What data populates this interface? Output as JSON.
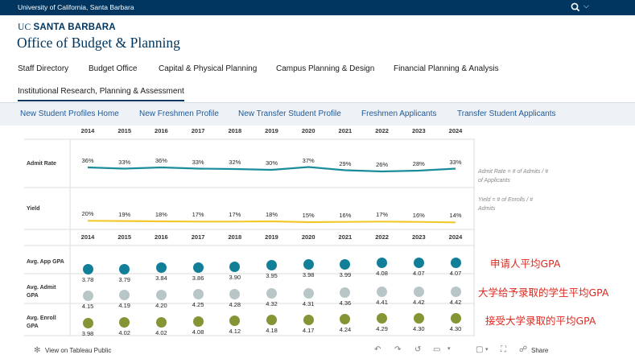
{
  "topbar": {
    "university": "University of California, Santa Barbara"
  },
  "brand": {
    "uc": "UC",
    "campus": "SANTA BARBARA",
    "office": "Office of Budget & Planning"
  },
  "nav": {
    "items": [
      "Staff Directory",
      "Budget Office",
      "Capital & Physical Planning",
      "Campus Planning & Design",
      "Financial Planning & Analysis",
      "Institutional Research, Planning & Assessment"
    ]
  },
  "subnav": {
    "items": [
      "New Student Profiles Home",
      "New Freshmen Profile",
      "New Transfer Student Profile",
      "Freshmen Applicants",
      "Transfer Student Applicants"
    ]
  },
  "viz": {
    "years": [
      "2014",
      "2015",
      "2016",
      "2017",
      "2018",
      "2019",
      "2020",
      "2021",
      "2022",
      "2023",
      "2024"
    ],
    "rows": {
      "admit_rate_label": "Admit Rate",
      "yield_label": "Yield",
      "app_gpa_label": "Avg. App GPA",
      "admit_gpa_label": [
        "Avg. Admit",
        "GPA"
      ],
      "enroll_gpa_label": [
        "Avg. Enroll",
        "GPA"
      ]
    },
    "notes": {
      "admit_rate": [
        "Admit Rate = # of Admits / #",
        "of Applicants"
      ],
      "yield": [
        "Yield = # of Enrolls / #",
        "Admits"
      ]
    },
    "annotations": {
      "app": "申请人平均GPA",
      "admit": "大学给予录取的学生平均GPA",
      "enroll": "接受大学录取的平均GPA"
    },
    "colors": {
      "admit_rate": "#1b8c9c",
      "yield": "#f2c82c",
      "app_gpa": "#127f98",
      "admit_gpa": "#b9c6c8",
      "enroll_gpa": "#839534"
    }
  },
  "chart_data": [
    {
      "type": "line",
      "title": "",
      "categories": [
        "2014",
        "2015",
        "2016",
        "2017",
        "2018",
        "2019",
        "2020",
        "2021",
        "2022",
        "2023",
        "2024"
      ],
      "series": [
        {
          "name": "Admit Rate",
          "labels": [
            "36%",
            "33%",
            "36%",
            "33%",
            "32%",
            "30%",
            "37%",
            "29%",
            "26%",
            "28%",
            "33%"
          ],
          "values": [
            36,
            33,
            36,
            33,
            32,
            30,
            37,
            29,
            26,
            28,
            33
          ]
        },
        {
          "name": "Yield",
          "labels": [
            "20%",
            "19%",
            "18%",
            "17%",
            "17%",
            "18%",
            "15%",
            "16%",
            "17%",
            "16%",
            "14%"
          ],
          "values": [
            20,
            19,
            18,
            17,
            17,
            18,
            15,
            16,
            17,
            16,
            14
          ]
        }
      ]
    },
    {
      "type": "scatter",
      "title": "",
      "categories": [
        "2014",
        "2015",
        "2016",
        "2017",
        "2018",
        "2019",
        "2020",
        "2021",
        "2022",
        "2023",
        "2024"
      ],
      "series": [
        {
          "name": "Avg. App GPA",
          "labels": [
            "3.78",
            "3.79",
            "3.84",
            "3.86",
            "3.90",
            "3.95",
            "3.98",
            "3.99",
            "4.08",
            "4.07",
            "4.07"
          ],
          "values": [
            3.78,
            3.79,
            3.84,
            3.86,
            3.9,
            3.95,
            3.98,
            3.99,
            4.08,
            4.07,
            4.07
          ]
        },
        {
          "name": "Avg. Admit GPA",
          "labels": [
            "4.15",
            "4.19",
            "4.20",
            "4.25",
            "4.28",
            "4.32",
            "4.31",
            "4.36",
            "4.41",
            "4.42",
            "4.42"
          ],
          "values": [
            4.15,
            4.19,
            4.2,
            4.25,
            4.28,
            4.32,
            4.31,
            4.36,
            4.41,
            4.42,
            4.42
          ]
        },
        {
          "name": "Avg. Enroll GPA",
          "labels": [
            "3.98",
            "4.02",
            "4.02",
            "4.08",
            "4.12",
            "4.18",
            "4.17",
            "4.24",
            "4.29",
            "4.30",
            "4.30"
          ],
          "values": [
            3.98,
            4.02,
            4.02,
            4.08,
            4.12,
            4.18,
            4.17,
            4.24,
            4.29,
            4.3,
            4.3
          ]
        }
      ]
    }
  ],
  "footer": {
    "tableau": "View on Tableau Public",
    "share": "Share"
  }
}
